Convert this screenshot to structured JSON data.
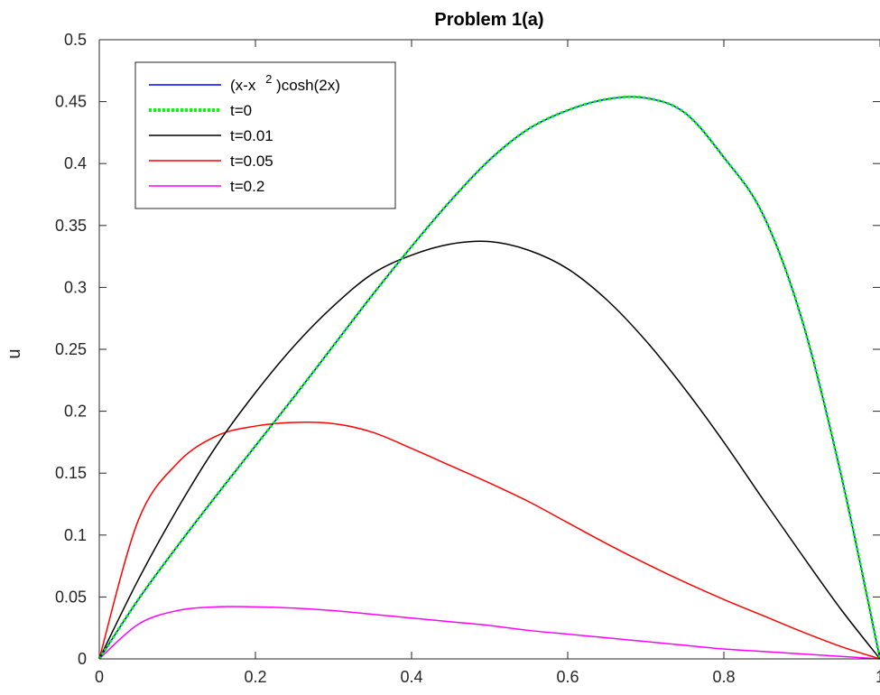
{
  "chart_data": {
    "type": "line",
    "title": "Problem 1(a)",
    "xlabel": "",
    "ylabel": "u",
    "xlim": [
      0,
      1
    ],
    "ylim": [
      0,
      0.5
    ],
    "x_ticks": [
      0,
      0.2,
      0.4,
      0.6,
      0.8,
      1
    ],
    "x_tick_labels": [
      "0",
      "0.2",
      "0.4",
      "0.6",
      "0.8",
      "1"
    ],
    "y_ticks": [
      0,
      0.05,
      0.1,
      0.15,
      0.2,
      0.25,
      0.3,
      0.35,
      0.4,
      0.45,
      0.5
    ],
    "y_tick_labels": [
      "0",
      "0.05",
      "0.1",
      "0.15",
      "0.2",
      "0.25",
      "0.3",
      "0.35",
      "0.4",
      "0.45",
      "0.5"
    ],
    "grid": false,
    "legend_position": "top-left",
    "x": [
      0,
      0.05,
      0.1,
      0.15,
      0.2,
      0.25,
      0.3,
      0.35,
      0.4,
      0.45,
      0.5,
      0.55,
      0.6,
      0.65,
      0.7,
      0.75,
      0.8,
      0.85,
      0.9,
      0.95,
      1
    ],
    "series": [
      {
        "legend_main": "(x-x",
        "legend_sup": "2",
        "legend_tail": ")cosh(2x)",
        "color": "#0000ff",
        "style": "solid",
        "values": [
          0,
          0.048,
          0.091,
          0.132,
          0.172,
          0.212,
          0.253,
          0.294,
          0.333,
          0.37,
          0.403,
          0.428,
          0.443,
          0.452,
          0.453,
          0.441,
          0.405,
          0.359,
          0.274,
          0.149,
          0
        ]
      },
      {
        "name": "t=0",
        "color": "#00ff00",
        "style": "dotted",
        "values": [
          0,
          0.048,
          0.091,
          0.132,
          0.172,
          0.212,
          0.253,
          0.294,
          0.333,
          0.37,
          0.403,
          0.428,
          0.443,
          0.452,
          0.453,
          0.441,
          0.405,
          0.359,
          0.274,
          0.149,
          0
        ]
      },
      {
        "name": "t=0.01",
        "color": "#000000",
        "style": "solid",
        "values": [
          0,
          0.064,
          0.121,
          0.172,
          0.215,
          0.253,
          0.285,
          0.311,
          0.326,
          0.335,
          0.337,
          0.33,
          0.315,
          0.29,
          0.257,
          0.218,
          0.175,
          0.129,
          0.084,
          0.04,
          0
        ]
      },
      {
        "name": "t=0.05",
        "color": "#ff0000",
        "style": "solid",
        "values": [
          0,
          0.112,
          0.158,
          0.18,
          0.188,
          0.191,
          0.19,
          0.183,
          0.17,
          0.156,
          0.142,
          0.127,
          0.11,
          0.093,
          0.077,
          0.062,
          0.048,
          0.035,
          0.022,
          0.01,
          0
        ]
      },
      {
        "name": "t=0.2",
        "color": "#ff00ff",
        "style": "solid",
        "values": [
          0,
          0.028,
          0.039,
          0.042,
          0.042,
          0.041,
          0.039,
          0.036,
          0.033,
          0.03,
          0.027,
          0.023,
          0.02,
          0.017,
          0.014,
          0.011,
          0.008,
          0.006,
          0.004,
          0.002,
          0
        ]
      }
    ]
  }
}
